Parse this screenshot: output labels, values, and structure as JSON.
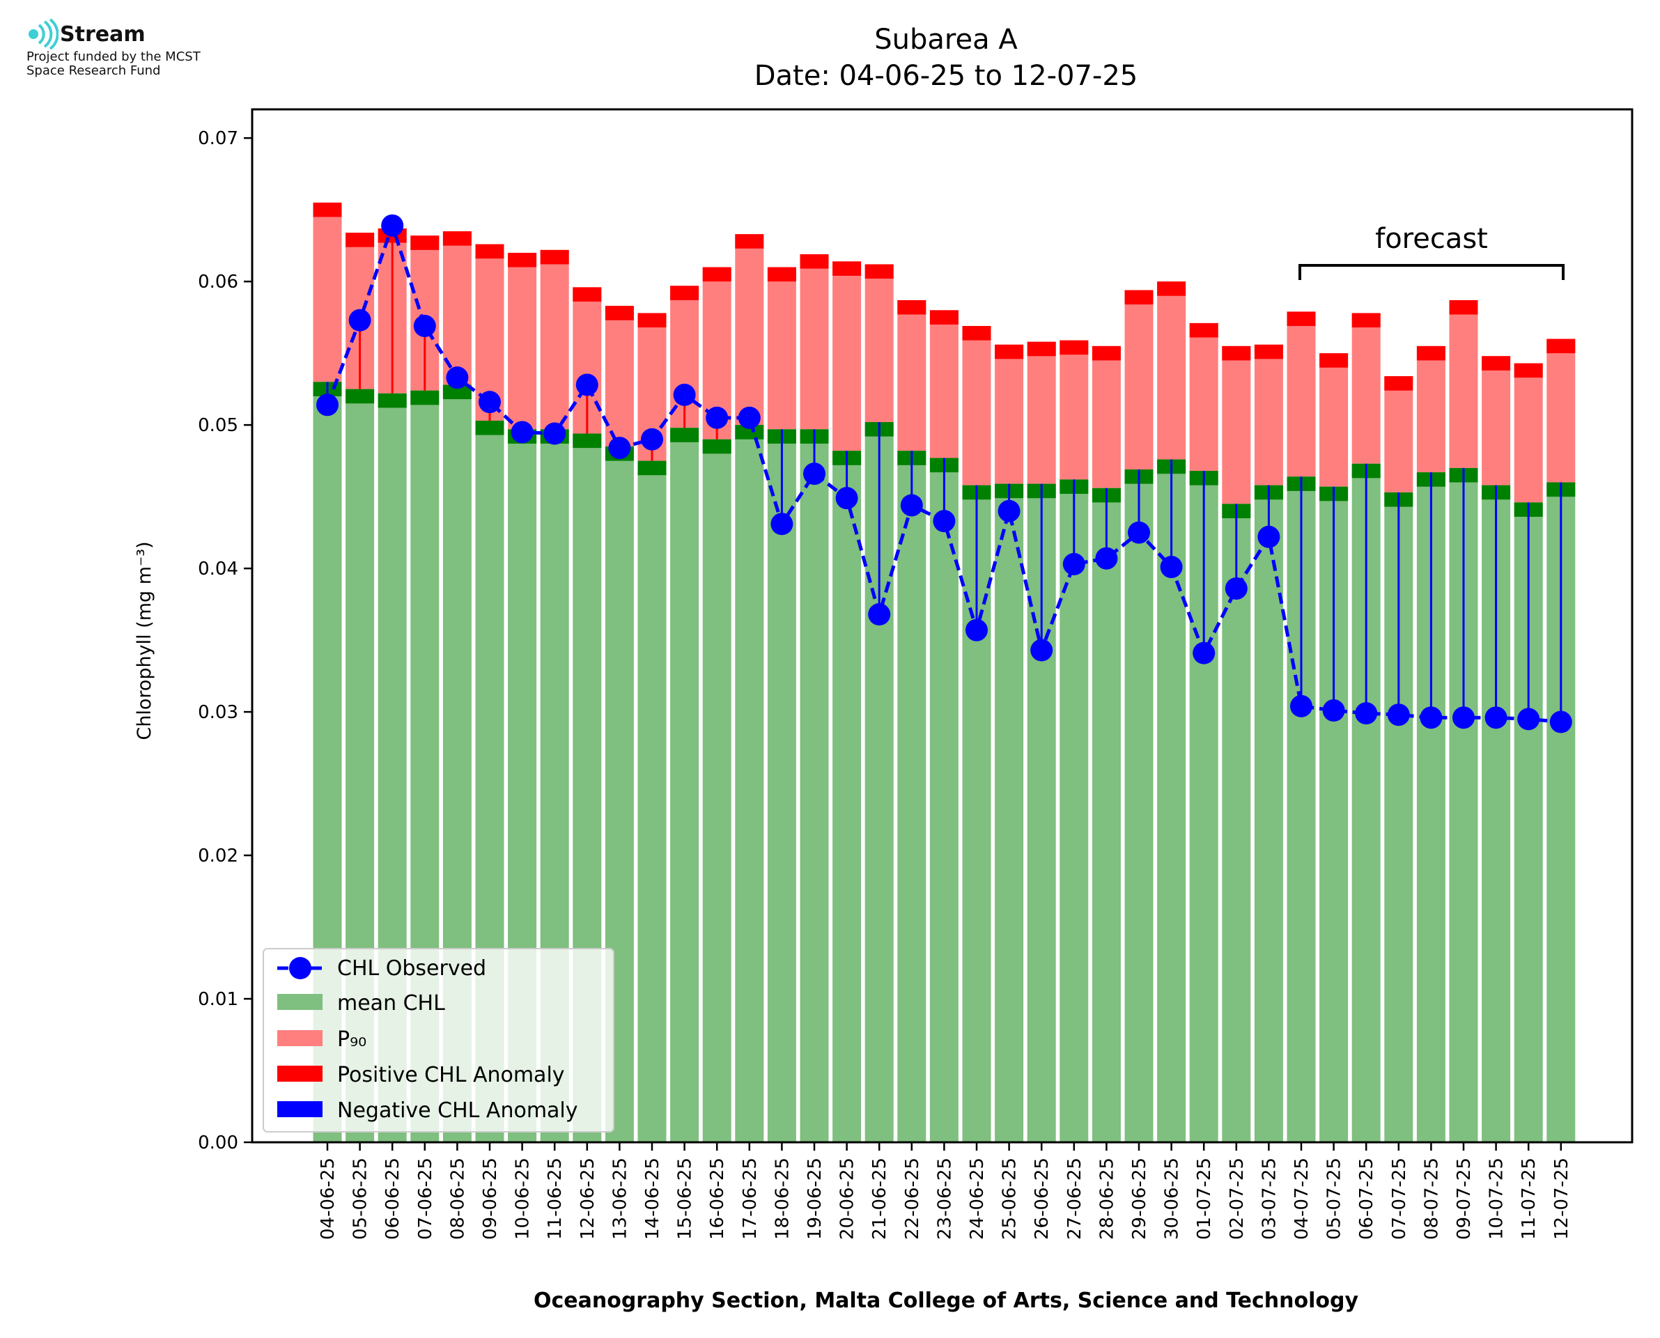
{
  "logo": {
    "name": "Stream",
    "line1": "Project funded by the MCST",
    "line2": "Space Research Fund",
    "color": "#3ecfd4"
  },
  "chart_data": {
    "type": "bar",
    "title": "Subarea A",
    "subtitle": "Date: 04-06-25 to 12-07-25",
    "xlabel": "Oceanography Section, Malta College of Arts, Science and Technology",
    "ylabel": "Chlorophyll (mg m⁻³)",
    "ylim": [
      0,
      0.072
    ],
    "yticks": [
      "0.00",
      "0.01",
      "0.02",
      "0.03",
      "0.04",
      "0.05",
      "0.06",
      "0.07"
    ],
    "legend_position": "lower-left",
    "annotation": "forecast",
    "forecast_start": "04-07-25",
    "forecast_end": "12-07-25",
    "categories": [
      "04-06-25",
      "05-06-25",
      "06-06-25",
      "07-06-25",
      "08-06-25",
      "09-06-25",
      "10-06-25",
      "11-06-25",
      "12-06-25",
      "13-06-25",
      "14-06-25",
      "15-06-25",
      "16-06-25",
      "17-06-25",
      "18-06-25",
      "19-06-25",
      "20-06-25",
      "21-06-25",
      "22-06-25",
      "23-06-25",
      "24-06-25",
      "25-06-25",
      "26-06-25",
      "27-06-25",
      "28-06-25",
      "29-06-25",
      "30-06-25",
      "01-07-25",
      "02-07-25",
      "03-07-25",
      "04-07-25",
      "05-07-25",
      "06-07-25",
      "07-07-25",
      "08-07-25",
      "09-07-25",
      "10-07-25",
      "11-07-25",
      "12-07-25"
    ],
    "series": [
      {
        "name": "CHL Observed",
        "color": "#0000ff",
        "values": [
          0.0514,
          0.0573,
          0.0639,
          0.0569,
          0.0533,
          0.0516,
          0.0495,
          0.0494,
          0.0528,
          0.0484,
          0.049,
          0.0521,
          0.0505,
          0.0505,
          0.0431,
          0.0466,
          0.0449,
          0.0368,
          0.0444,
          0.0433,
          0.0357,
          0.044,
          0.0343,
          0.0403,
          0.0407,
          0.0425,
          0.0401,
          0.0341,
          0.0386,
          0.0422,
          0.0304,
          0.0301,
          0.0299,
          0.0298,
          0.0296,
          0.0296,
          0.0296,
          0.0295,
          0.0293
        ]
      },
      {
        "name": "mean CHL",
        "color": "#7fbf7f",
        "values": [
          0.053,
          0.0525,
          0.0522,
          0.0524,
          0.0528,
          0.0503,
          0.0497,
          0.0497,
          0.0494,
          0.0485,
          0.0475,
          0.0498,
          0.049,
          0.05,
          0.0497,
          0.0497,
          0.0482,
          0.0502,
          0.0482,
          0.0477,
          0.0458,
          0.0459,
          0.0459,
          0.0462,
          0.0456,
          0.0469,
          0.0476,
          0.0468,
          0.0445,
          0.0458,
          0.0464,
          0.0457,
          0.0473,
          0.0453,
          0.0467,
          0.047,
          0.0458,
          0.0446,
          0.046
        ]
      },
      {
        "name": "P₉₀",
        "color": "#ff7f7f",
        "values": [
          0.0655,
          0.0634,
          0.0637,
          0.0632,
          0.0635,
          0.0626,
          0.062,
          0.0622,
          0.0596,
          0.0583,
          0.0578,
          0.0597,
          0.061,
          0.0633,
          0.061,
          0.0619,
          0.0614,
          0.0612,
          0.0587,
          0.058,
          0.0569,
          0.0556,
          0.0558,
          0.0559,
          0.0555,
          0.0594,
          0.06,
          0.0571,
          0.0555,
          0.0556,
          0.0579,
          0.055,
          0.0578,
          0.0534,
          0.0555,
          0.0587,
          0.0548,
          0.0543,
          0.056
        ]
      },
      {
        "name": "Positive CHL Anomaly",
        "color": "#ff0000"
      },
      {
        "name": "Negative CHL Anomaly",
        "color": "#0000ff"
      }
    ],
    "band_colors": {
      "mean_band": "#008000",
      "p90_band": "#ff0000"
    }
  }
}
